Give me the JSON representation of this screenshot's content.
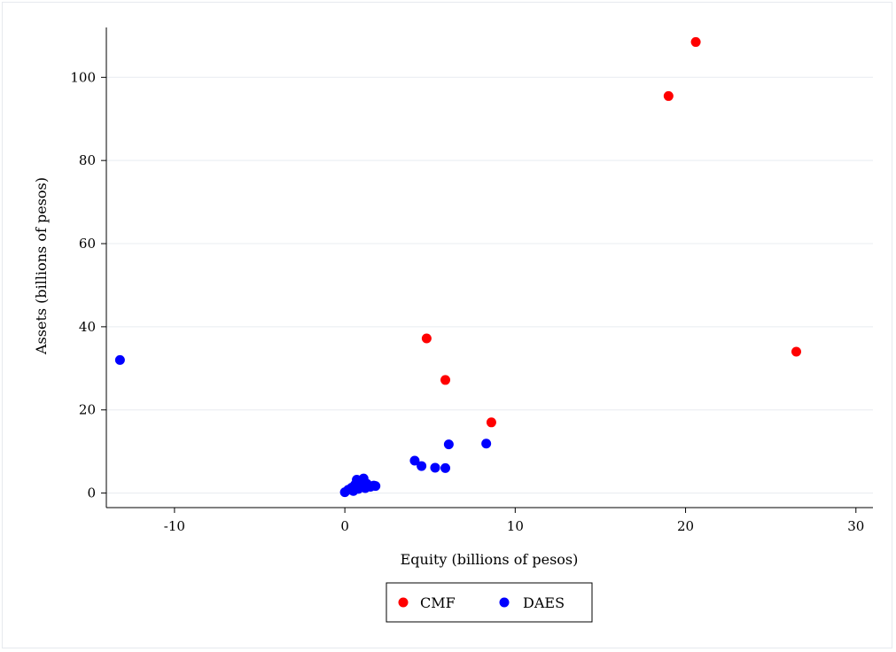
{
  "chart_data": {
    "type": "scatter",
    "xlabel": "Equity (billions of pesos)",
    "ylabel": "Assets (billions of pesos)",
    "xlim": [
      -14,
      31
    ],
    "ylim": [
      -3.5,
      112
    ],
    "xticks": [
      -10,
      0,
      10,
      20,
      30
    ],
    "yticks": [
      0,
      20,
      40,
      60,
      80,
      100
    ],
    "grid": "horizontal",
    "legend_position": "bottom-center",
    "series": [
      {
        "name": "CMF",
        "color": "#ff0000",
        "points": [
          {
            "x": 4.8,
            "y": 37.2
          },
          {
            "x": 5.9,
            "y": 27.2
          },
          {
            "x": 8.6,
            "y": 17.0
          },
          {
            "x": 19.0,
            "y": 95.5
          },
          {
            "x": 20.6,
            "y": 108.5
          },
          {
            "x": 26.5,
            "y": 34.0
          }
        ]
      },
      {
        "name": "DAES",
        "color": "#0000ff",
        "points": [
          {
            "x": -13.2,
            "y": 32.0
          },
          {
            "x": 0.0,
            "y": 0.2
          },
          {
            "x": 0.2,
            "y": 0.8
          },
          {
            "x": 0.4,
            "y": 1.3
          },
          {
            "x": 0.5,
            "y": 0.5
          },
          {
            "x": 0.6,
            "y": 2.0
          },
          {
            "x": 0.7,
            "y": 3.2
          },
          {
            "x": 0.8,
            "y": 1.0
          },
          {
            "x": 0.9,
            "y": 1.6
          },
          {
            "x": 1.0,
            "y": 2.6
          },
          {
            "x": 1.1,
            "y": 3.5
          },
          {
            "x": 1.2,
            "y": 1.2
          },
          {
            "x": 1.3,
            "y": 2.2
          },
          {
            "x": 1.5,
            "y": 1.5
          },
          {
            "x": 1.7,
            "y": 1.8
          },
          {
            "x": 1.8,
            "y": 1.7
          },
          {
            "x": 4.1,
            "y": 7.8
          },
          {
            "x": 4.5,
            "y": 6.5
          },
          {
            "x": 5.3,
            "y": 6.1
          },
          {
            "x": 5.9,
            "y": 6.0
          },
          {
            "x": 6.1,
            "y": 11.7
          },
          {
            "x": 8.3,
            "y": 11.9
          }
        ]
      }
    ]
  }
}
